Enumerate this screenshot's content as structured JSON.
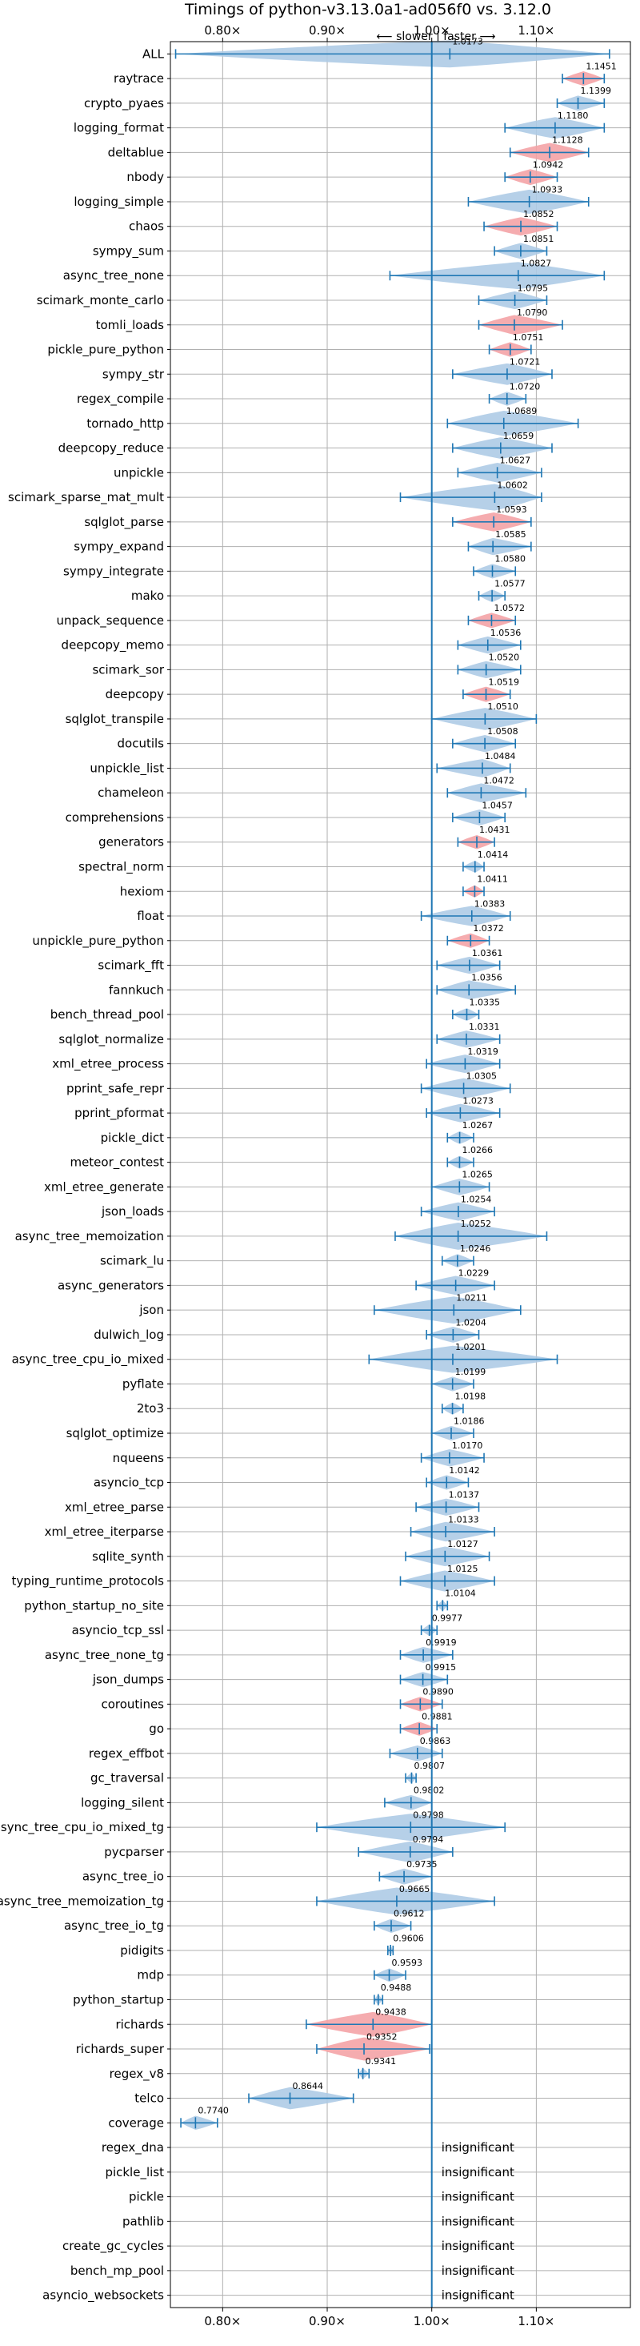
{
  "chart_data": {
    "type": "violin",
    "title": "Timings of python-v3.13.0a1-ad056f0 vs. 3.12.0",
    "direction_label": "⟵ slower | faster ⟶",
    "xlim": [
      0.75,
      1.19
    ],
    "xticks": [
      0.8,
      0.9,
      1.0,
      1.1
    ],
    "xtick_labels": [
      "0.80×",
      "0.90×",
      "1.00×",
      "1.10×"
    ],
    "reference_line": 1.0,
    "colors": {
      "faster": "#aecbe6",
      "significant_faster": "#f4a3a6",
      "whisker": "#1f77b4",
      "grid": "#b0b0b0"
    },
    "insignificant_label": "insignificant",
    "benchmarks": [
      {
        "name": "ALL",
        "value": 1.0173,
        "label": "1.0173",
        "lo": 0.755,
        "hi": 1.17,
        "spread": 0.2,
        "color": "blue"
      },
      {
        "name": "raytrace",
        "value": 1.1451,
        "label": "1.1451",
        "lo": 1.125,
        "hi": 1.165,
        "spread": 0.025,
        "color": "red"
      },
      {
        "name": "crypto_pyaes",
        "value": 1.1399,
        "label": "1.1399",
        "lo": 1.12,
        "hi": 1.165,
        "spread": 0.03,
        "color": "blue"
      },
      {
        "name": "logging_format",
        "value": 1.118,
        "label": "1.1180",
        "lo": 1.07,
        "hi": 1.165,
        "spread": 0.06,
        "color": "blue"
      },
      {
        "name": "deltablue",
        "value": 1.1128,
        "label": "1.1128",
        "lo": 1.075,
        "hi": 1.15,
        "spread": 0.045,
        "color": "red"
      },
      {
        "name": "nbody",
        "value": 1.0942,
        "label": "1.0942",
        "lo": 1.07,
        "hi": 1.12,
        "spread": 0.03,
        "color": "red"
      },
      {
        "name": "logging_simple",
        "value": 1.0933,
        "label": "1.0933",
        "lo": 1.035,
        "hi": 1.15,
        "spread": 0.07,
        "color": "blue"
      },
      {
        "name": "chaos",
        "value": 1.0852,
        "label": "1.0852",
        "lo": 1.05,
        "hi": 1.12,
        "spread": 0.045,
        "color": "red"
      },
      {
        "name": "sympy_sum",
        "value": 1.0851,
        "label": "1.0851",
        "lo": 1.06,
        "hi": 1.11,
        "spread": 0.03,
        "color": "blue"
      },
      {
        "name": "async_tree_none",
        "value": 1.0827,
        "label": "1.0827",
        "lo": 0.96,
        "hi": 1.165,
        "spread": 0.14,
        "color": "blue"
      },
      {
        "name": "scimark_monte_carlo",
        "value": 1.0795,
        "label": "1.0795",
        "lo": 1.045,
        "hi": 1.11,
        "spread": 0.04,
        "color": "blue"
      },
      {
        "name": "tomli_loads",
        "value": 1.079,
        "label": "1.0790",
        "lo": 1.045,
        "hi": 1.125,
        "spread": 0.05,
        "color": "red"
      },
      {
        "name": "pickle_pure_python",
        "value": 1.0751,
        "label": "1.0751",
        "lo": 1.055,
        "hi": 1.095,
        "spread": 0.025,
        "color": "red"
      },
      {
        "name": "sympy_str",
        "value": 1.0721,
        "label": "1.0721",
        "lo": 1.02,
        "hi": 1.115,
        "spread": 0.06,
        "color": "blue"
      },
      {
        "name": "regex_compile",
        "value": 1.072,
        "label": "1.0720",
        "lo": 1.055,
        "hi": 1.09,
        "spread": 0.022,
        "color": "blue"
      },
      {
        "name": "tornado_http",
        "value": 1.0689,
        "label": "1.0689",
        "lo": 1.015,
        "hi": 1.14,
        "spread": 0.07,
        "color": "blue"
      },
      {
        "name": "deepcopy_reduce",
        "value": 1.0659,
        "label": "1.0659",
        "lo": 1.02,
        "hi": 1.115,
        "spread": 0.055,
        "color": "blue"
      },
      {
        "name": "unpickle",
        "value": 1.0627,
        "label": "1.0627",
        "lo": 1.025,
        "hi": 1.105,
        "spread": 0.05,
        "color": "blue"
      },
      {
        "name": "scimark_sparse_mat_mult",
        "value": 1.0602,
        "label": "1.0602",
        "lo": 0.97,
        "hi": 1.105,
        "spread": 0.08,
        "color": "blue"
      },
      {
        "name": "sqlglot_parse",
        "value": 1.0593,
        "label": "1.0593",
        "lo": 1.02,
        "hi": 1.095,
        "spread": 0.045,
        "color": "red"
      },
      {
        "name": "sympy_expand",
        "value": 1.0585,
        "label": "1.0585",
        "lo": 1.035,
        "hi": 1.095,
        "spread": 0.035,
        "color": "blue"
      },
      {
        "name": "sympy_integrate",
        "value": 1.058,
        "label": "1.0580",
        "lo": 1.04,
        "hi": 1.08,
        "spread": 0.025,
        "color": "blue"
      },
      {
        "name": "mako",
        "value": 1.0577,
        "label": "1.0577",
        "lo": 1.045,
        "hi": 1.07,
        "spread": 0.015,
        "color": "blue"
      },
      {
        "name": "unpack_sequence",
        "value": 1.0572,
        "label": "1.0572",
        "lo": 1.035,
        "hi": 1.08,
        "spread": 0.03,
        "color": "red"
      },
      {
        "name": "deepcopy_memo",
        "value": 1.0536,
        "label": "1.0536",
        "lo": 1.025,
        "hi": 1.085,
        "spread": 0.035,
        "color": "blue"
      },
      {
        "name": "scimark_sor",
        "value": 1.052,
        "label": "1.0520",
        "lo": 1.025,
        "hi": 1.085,
        "spread": 0.035,
        "color": "blue"
      },
      {
        "name": "deepcopy",
        "value": 1.0519,
        "label": "1.0519",
        "lo": 1.03,
        "hi": 1.075,
        "spread": 0.03,
        "color": "red"
      },
      {
        "name": "sqlglot_transpile",
        "value": 1.051,
        "label": "1.0510",
        "lo": 1.0,
        "hi": 1.1,
        "spread": 0.06,
        "color": "blue"
      },
      {
        "name": "docutils",
        "value": 1.0508,
        "label": "1.0508",
        "lo": 1.02,
        "hi": 1.08,
        "spread": 0.035,
        "color": "blue"
      },
      {
        "name": "unpickle_list",
        "value": 1.0484,
        "label": "1.0484",
        "lo": 1.005,
        "hi": 1.075,
        "spread": 0.045,
        "color": "blue"
      },
      {
        "name": "chameleon",
        "value": 1.0472,
        "label": "1.0472",
        "lo": 1.015,
        "hi": 1.09,
        "spread": 0.045,
        "color": "blue"
      },
      {
        "name": "comprehensions",
        "value": 1.0457,
        "label": "1.0457",
        "lo": 1.02,
        "hi": 1.07,
        "spread": 0.03,
        "color": "blue"
      },
      {
        "name": "generators",
        "value": 1.0431,
        "label": "1.0431",
        "lo": 1.025,
        "hi": 1.06,
        "spread": 0.02,
        "color": "red"
      },
      {
        "name": "spectral_norm",
        "value": 1.0414,
        "label": "1.0414",
        "lo": 1.03,
        "hi": 1.05,
        "spread": 0.012,
        "color": "blue"
      },
      {
        "name": "hexiom",
        "value": 1.0411,
        "label": "1.0411",
        "lo": 1.03,
        "hi": 1.05,
        "spread": 0.012,
        "color": "red"
      },
      {
        "name": "float",
        "value": 1.0383,
        "label": "1.0383",
        "lo": 0.99,
        "hi": 1.075,
        "spread": 0.06,
        "color": "blue"
      },
      {
        "name": "unpickle_pure_python",
        "value": 1.0372,
        "label": "1.0372",
        "lo": 1.015,
        "hi": 1.055,
        "spread": 0.025,
        "color": "red"
      },
      {
        "name": "scimark_fft",
        "value": 1.0361,
        "label": "1.0361",
        "lo": 1.005,
        "hi": 1.065,
        "spread": 0.035,
        "color": "blue"
      },
      {
        "name": "fannkuch",
        "value": 1.0356,
        "label": "1.0356",
        "lo": 1.005,
        "hi": 1.08,
        "spread": 0.045,
        "color": "blue"
      },
      {
        "name": "bench_thread_pool",
        "value": 1.0335,
        "label": "1.0335",
        "lo": 1.02,
        "hi": 1.045,
        "spread": 0.015,
        "color": "blue"
      },
      {
        "name": "sqlglot_normalize",
        "value": 1.0331,
        "label": "1.0331",
        "lo": 1.005,
        "hi": 1.065,
        "spread": 0.035,
        "color": "blue"
      },
      {
        "name": "xml_etree_process",
        "value": 1.0319,
        "label": "1.0319",
        "lo": 0.995,
        "hi": 1.065,
        "spread": 0.04,
        "color": "blue"
      },
      {
        "name": "pprint_safe_repr",
        "value": 1.0305,
        "label": "1.0305",
        "lo": 0.99,
        "hi": 1.075,
        "spread": 0.05,
        "color": "blue"
      },
      {
        "name": "pprint_pformat",
        "value": 1.0273,
        "label": "1.0273",
        "lo": 0.995,
        "hi": 1.065,
        "spread": 0.04,
        "color": "blue"
      },
      {
        "name": "pickle_dict",
        "value": 1.0267,
        "label": "1.0267",
        "lo": 1.015,
        "hi": 1.04,
        "spread": 0.015,
        "color": "blue"
      },
      {
        "name": "meteor_contest",
        "value": 1.0266,
        "label": "1.0266",
        "lo": 1.015,
        "hi": 1.04,
        "spread": 0.015,
        "color": "blue"
      },
      {
        "name": "xml_etree_generate",
        "value": 1.0265,
        "label": "1.0265",
        "lo": 1.0,
        "hi": 1.055,
        "spread": 0.035,
        "color": "blue"
      },
      {
        "name": "json_loads",
        "value": 1.0254,
        "label": "1.0254",
        "lo": 0.99,
        "hi": 1.06,
        "spread": 0.04,
        "color": "blue"
      },
      {
        "name": "async_tree_memoization",
        "value": 1.0252,
        "label": "1.0252",
        "lo": 0.965,
        "hi": 1.11,
        "spread": 0.09,
        "color": "blue"
      },
      {
        "name": "scimark_lu",
        "value": 1.0246,
        "label": "1.0246",
        "lo": 1.01,
        "hi": 1.04,
        "spread": 0.018,
        "color": "blue"
      },
      {
        "name": "async_generators",
        "value": 1.0229,
        "label": "1.0229",
        "lo": 0.985,
        "hi": 1.06,
        "spread": 0.045,
        "color": "blue"
      },
      {
        "name": "json",
        "value": 1.0211,
        "label": "1.0211",
        "lo": 0.945,
        "hi": 1.085,
        "spread": 0.09,
        "color": "blue"
      },
      {
        "name": "dulwich_log",
        "value": 1.0204,
        "label": "1.0204",
        "lo": 0.995,
        "hi": 1.045,
        "spread": 0.03,
        "color": "blue"
      },
      {
        "name": "async_tree_cpu_io_mixed",
        "value": 1.0201,
        "label": "1.0201",
        "lo": 0.94,
        "hi": 1.12,
        "spread": 0.11,
        "color": "blue"
      },
      {
        "name": "pyflate",
        "value": 1.0199,
        "label": "1.0199",
        "lo": 1.0,
        "hi": 1.04,
        "spread": 0.025,
        "color": "blue"
      },
      {
        "name": "2to3",
        "value": 1.0198,
        "label": "1.0198",
        "lo": 1.01,
        "hi": 1.03,
        "spread": 0.012,
        "color": "blue"
      },
      {
        "name": "sqlglot_optimize",
        "value": 1.0186,
        "label": "1.0186",
        "lo": 1.0,
        "hi": 1.04,
        "spread": 0.025,
        "color": "blue"
      },
      {
        "name": "nqueens",
        "value": 1.017,
        "label": "1.0170",
        "lo": 0.99,
        "hi": 1.05,
        "spread": 0.035,
        "color": "blue"
      },
      {
        "name": "asyncio_tcp",
        "value": 1.0142,
        "label": "1.0142",
        "lo": 0.995,
        "hi": 1.035,
        "spread": 0.025,
        "color": "blue"
      },
      {
        "name": "xml_etree_parse",
        "value": 1.0137,
        "label": "1.0137",
        "lo": 0.985,
        "hi": 1.045,
        "spread": 0.035,
        "color": "blue"
      },
      {
        "name": "xml_etree_iterparse",
        "value": 1.0133,
        "label": "1.0133",
        "lo": 0.98,
        "hi": 1.06,
        "spread": 0.045,
        "color": "blue"
      },
      {
        "name": "sqlite_synth",
        "value": 1.0127,
        "label": "1.0127",
        "lo": 0.975,
        "hi": 1.055,
        "spread": 0.045,
        "color": "blue"
      },
      {
        "name": "typing_runtime_protocols",
        "value": 1.0125,
        "label": "1.0125",
        "lo": 0.97,
        "hi": 1.06,
        "spread": 0.05,
        "color": "blue"
      },
      {
        "name": "python_startup_no_site",
        "value": 1.0104,
        "label": "1.0104",
        "lo": 1.005,
        "hi": 1.015,
        "spread": 0.006,
        "color": "blue"
      },
      {
        "name": "asyncio_tcp_ssl",
        "value": 0.9977,
        "label": "0.9977",
        "lo": 0.99,
        "hi": 1.005,
        "spread": 0.01,
        "color": "blue"
      },
      {
        "name": "async_tree_none_tg",
        "value": 0.9919,
        "label": "0.9919",
        "lo": 0.97,
        "hi": 1.02,
        "spread": 0.03,
        "color": "blue"
      },
      {
        "name": "json_dumps",
        "value": 0.9915,
        "label": "0.9915",
        "lo": 0.97,
        "hi": 1.015,
        "spread": 0.025,
        "color": "blue"
      },
      {
        "name": "coroutines",
        "value": 0.989,
        "label": "0.9890",
        "lo": 0.97,
        "hi": 1.01,
        "spread": 0.025,
        "color": "red"
      },
      {
        "name": "go",
        "value": 0.9881,
        "label": "0.9881",
        "lo": 0.97,
        "hi": 1.005,
        "spread": 0.02,
        "color": "red"
      },
      {
        "name": "regex_effbot",
        "value": 0.9863,
        "label": "0.9863",
        "lo": 0.96,
        "hi": 1.01,
        "spread": 0.03,
        "color": "blue"
      },
      {
        "name": "gc_traversal",
        "value": 0.9807,
        "label": "0.9807",
        "lo": 0.975,
        "hi": 0.985,
        "spread": 0.006,
        "color": "blue"
      },
      {
        "name": "logging_silent",
        "value": 0.9802,
        "label": "0.9802",
        "lo": 0.955,
        "hi": 1.0,
        "spread": 0.025,
        "color": "blue"
      },
      {
        "name": "async_tree_cpu_io_mixed_tg",
        "value": 0.9798,
        "label": "0.9798",
        "lo": 0.89,
        "hi": 1.07,
        "spread": 0.11,
        "color": "blue"
      },
      {
        "name": "pycparser",
        "value": 0.9794,
        "label": "0.9794",
        "lo": 0.93,
        "hi": 1.02,
        "spread": 0.055,
        "color": "blue"
      },
      {
        "name": "async_tree_io",
        "value": 0.9735,
        "label": "0.9735",
        "lo": 0.95,
        "hi": 1.0,
        "spread": 0.03,
        "color": "blue"
      },
      {
        "name": "async_tree_memoization_tg",
        "value": 0.9665,
        "label": "0.9665",
        "lo": 0.89,
        "hi": 1.06,
        "spread": 0.1,
        "color": "blue"
      },
      {
        "name": "async_tree_io_tg",
        "value": 0.9612,
        "label": "0.9612",
        "lo": 0.945,
        "hi": 0.98,
        "spread": 0.022,
        "color": "blue"
      },
      {
        "name": "pidigits",
        "value": 0.9606,
        "label": "0.9606",
        "lo": 0.958,
        "hi": 0.963,
        "spread": 0.003,
        "color": "blue"
      },
      {
        "name": "mdp",
        "value": 0.9593,
        "label": "0.9593",
        "lo": 0.945,
        "hi": 0.975,
        "spread": 0.018,
        "color": "blue"
      },
      {
        "name": "python_startup",
        "value": 0.9488,
        "label": "0.9488",
        "lo": 0.945,
        "hi": 0.953,
        "spread": 0.006,
        "color": "blue"
      },
      {
        "name": "richards",
        "value": 0.9438,
        "label": "0.9438",
        "lo": 0.88,
        "hi": 1.0,
        "spread": 0.075,
        "color": "red"
      },
      {
        "name": "richards_super",
        "value": 0.9352,
        "label": "0.9352",
        "lo": 0.89,
        "hi": 0.998,
        "spread": 0.065,
        "color": "red"
      },
      {
        "name": "regex_v8",
        "value": 0.9341,
        "label": "0.9341",
        "lo": 0.93,
        "hi": 0.94,
        "spread": 0.006,
        "color": "blue"
      },
      {
        "name": "telco",
        "value": 0.8644,
        "label": "0.8644",
        "lo": 0.825,
        "hi": 0.925,
        "spread": 0.06,
        "color": "blue"
      },
      {
        "name": "coverage",
        "value": 0.774,
        "label": "0.7740",
        "lo": 0.76,
        "hi": 0.795,
        "spread": 0.022,
        "color": "blue"
      },
      {
        "name": "regex_dna",
        "insignificant": true
      },
      {
        "name": "pickle_list",
        "insignificant": true
      },
      {
        "name": "pickle",
        "insignificant": true
      },
      {
        "name": "pathlib",
        "insignificant": true
      },
      {
        "name": "create_gc_cycles",
        "insignificant": true
      },
      {
        "name": "bench_mp_pool",
        "insignificant": true
      },
      {
        "name": "asyncio_websockets",
        "insignificant": true
      }
    ]
  }
}
